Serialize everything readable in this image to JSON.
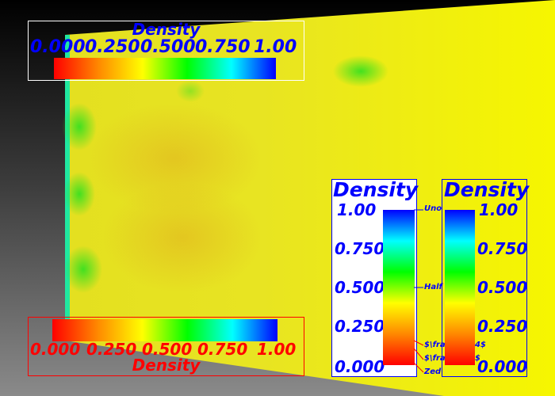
{
  "scene": {
    "colors": {
      "surface": "#e8ea10",
      "surface_light": "#f4f400",
      "background_top": "#000000",
      "background_bottom": "#8a8a8a",
      "edge": "#20e8a0"
    }
  },
  "colormap_stops": [
    "#ff0000",
    "#ff8800",
    "#ffff00",
    "#00ff00",
    "#00ffff",
    "#0000ff"
  ],
  "legends": {
    "top": {
      "title": "Density",
      "ticks": [
        "0.000",
        "0.250",
        "0.500",
        "0.750",
        "1.00"
      ],
      "text_color": "#0000ff",
      "border_color": "#ffffff"
    },
    "bottom": {
      "title": "Density",
      "ticks": [
        "0.000",
        "0.250",
        "0.500",
        "0.750",
        "1.00"
      ],
      "text_color": "#ff0000",
      "border_color": "#ff0000"
    },
    "vertical_annotated": {
      "title": "Density",
      "ticks": [
        "1.00",
        "0.750",
        "0.500",
        "0.250",
        "0.000"
      ],
      "annotations": [
        "Uno",
        "Half",
        "$\\frac",
        "$\\frac",
        "Zed"
      ],
      "annotation_suffixes": [
        "4$",
        "$"
      ],
      "text_color": "#0000ff"
    },
    "vertical_right": {
      "title": "Density",
      "ticks": [
        "1.00",
        "0.750",
        "0.500",
        "0.250",
        "0.000"
      ],
      "text_color": "#0000ff"
    }
  }
}
